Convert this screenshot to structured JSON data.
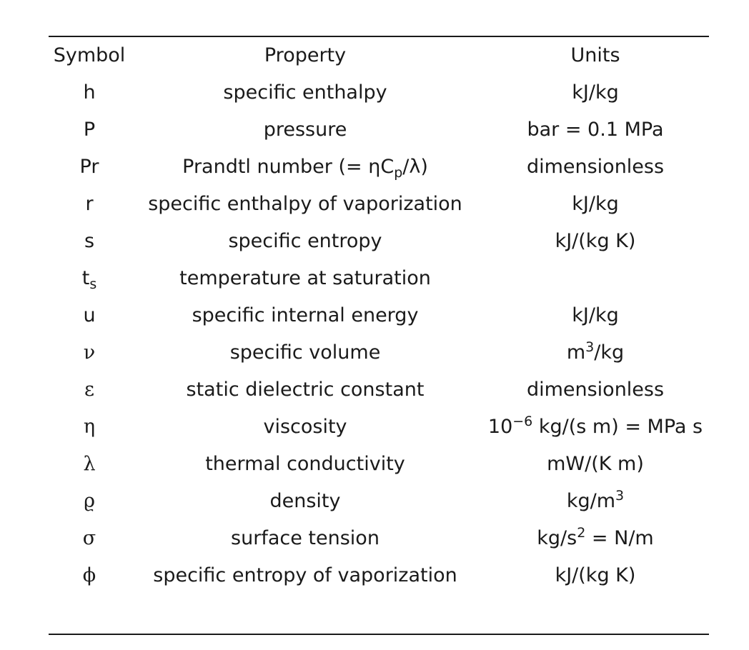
{
  "table": {
    "headers": {
      "symbol": "Symbol",
      "property": "Property",
      "units": "Units"
    },
    "rows": [
      {
        "symbol": "h",
        "property": "specific enthalpy",
        "units": "kJ/kg"
      },
      {
        "symbol": "P",
        "property": "pressure",
        "units": "bar = 0.1 MPa"
      },
      {
        "symbol": "Pr",
        "property_pre": "Prandtl number (= ηC",
        "property_sub": "p",
        "property_post": "/λ)",
        "units": "dimensionless"
      },
      {
        "symbol": "r",
        "property": "specific enthalpy of vaporization",
        "units": "kJ/kg"
      },
      {
        "symbol": "s",
        "property": "specific entropy",
        "units": "kJ/(kg K)"
      },
      {
        "symbol": "t",
        "symbol_sub": "s",
        "property": "temperature at saturation",
        "units": ""
      },
      {
        "symbol": "u",
        "property": "specific internal energy",
        "units": "kJ/kg"
      },
      {
        "symbol": "ν",
        "property": "specific volume",
        "units_pre": "m",
        "units_sup": "3",
        "units_post": "/kg"
      },
      {
        "symbol": "ε",
        "property": "static dielectric constant",
        "units": "dimensionless"
      },
      {
        "symbol": "η",
        "property": "viscosity",
        "units_pre": "10",
        "units_sup": "−6",
        "units_post": " kg/(s m) = MPa s"
      },
      {
        "symbol": "λ",
        "property": "thermal conductivity",
        "units": "mW/(K m)"
      },
      {
        "symbol": "ϱ",
        "property": "density",
        "units_pre": "kg/m",
        "units_sup": "3",
        "units_post": ""
      },
      {
        "symbol": "σ",
        "property": "surface tension",
        "units_pre": "kg/s",
        "units_sup": "2",
        "units_post": " = N/m"
      },
      {
        "symbol": "ϕ",
        "property": "specific entropy of vaporization",
        "units": "kJ/(kg K)"
      }
    ]
  }
}
